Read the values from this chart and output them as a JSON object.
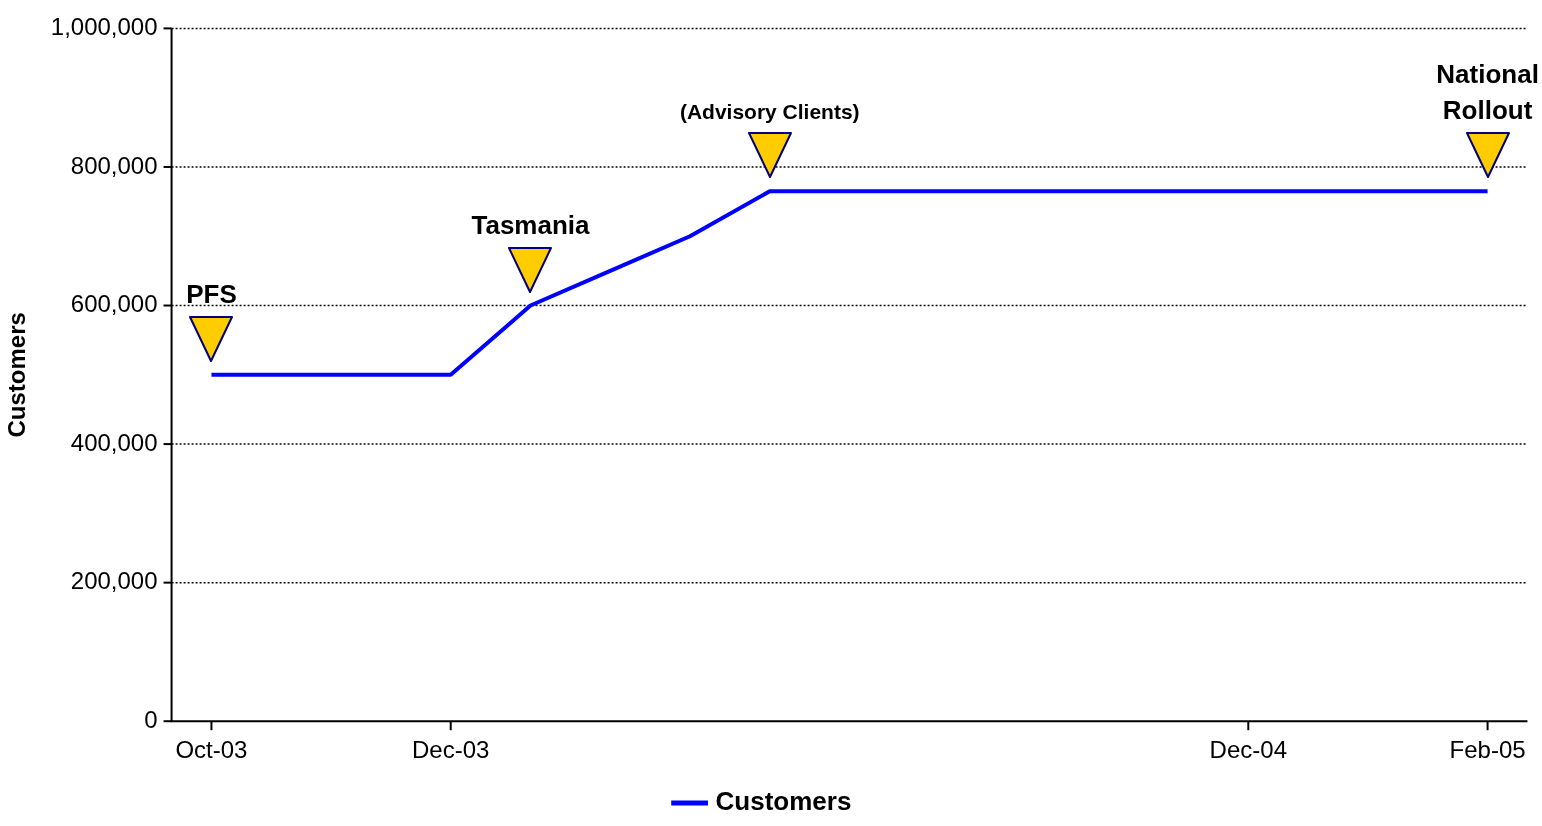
{
  "chart_data": {
    "type": "line",
    "ylabel": "Customers",
    "categories": [
      "Oct-03",
      null,
      null,
      "Dec-03",
      null,
      null,
      null,
      null,
      null,
      null,
      null,
      null,
      null,
      "Dec-04",
      null,
      null,
      "Feb-05"
    ],
    "series": [
      {
        "name": "Customers",
        "color": "#0000ff",
        "values": [
          500000,
          500000,
          500000,
          500000,
          600000,
          650000,
          700000,
          765000,
          765000,
          765000,
          765000,
          765000,
          765000,
          765000,
          765000,
          765000,
          765000
        ]
      }
    ],
    "ylim": [
      0,
      1000000
    ],
    "yticks": [
      {
        "value": 0,
        "label": "0"
      },
      {
        "value": 200000,
        "label": "200,000"
      },
      {
        "value": 400000,
        "label": "400,000"
      },
      {
        "value": 600000,
        "label": "600,000"
      },
      {
        "value": 800000,
        "label": "800,000"
      },
      {
        "value": 1000000,
        "label": "1,000,000"
      }
    ],
    "grid": "y",
    "legend": "bottom",
    "marker": "none",
    "line_style": "solid",
    "annotations": [
      {
        "text": "PFS",
        "x": "Oct-03",
        "y": 500000
      },
      "Tasmania",
      "(Advisory Clients)",
      {
        "text": "National\nRollout",
        "x": "Feb-05",
        "y": 765000
      }
    ]
  }
}
